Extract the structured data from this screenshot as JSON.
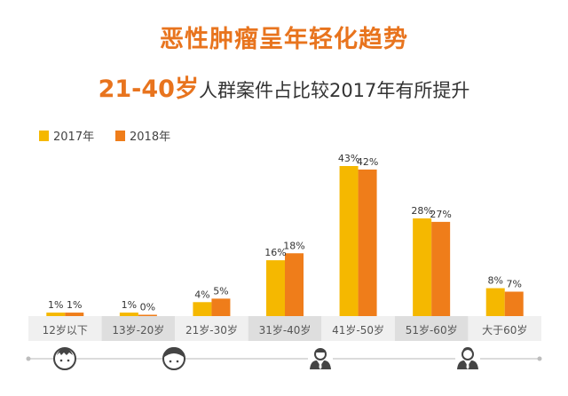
{
  "header": {
    "title": "恶性肿瘤呈年轻化趋势",
    "subtitle_highlight": "21-40岁",
    "subtitle_rest": "人群案件占比较2017年有所提升"
  },
  "chart_data": {
    "type": "bar",
    "title": "恶性肿瘤呈年轻化趋势",
    "categories": [
      "12岁以下",
      "13岁-20岁",
      "21岁-30岁",
      "31岁-40岁",
      "41岁-50岁",
      "51岁-60岁",
      "大于60岁"
    ],
    "series": [
      {
        "name": "2017年",
        "color": "#f5b800",
        "values": [
          1,
          1,
          4,
          16,
          43,
          28,
          8
        ],
        "labels": [
          "1%",
          "1%",
          "4%",
          "16%",
          "43%",
          "28%",
          "8%"
        ]
      },
      {
        "name": "2018年",
        "color": "#ef7d1a",
        "values": [
          1,
          0,
          5,
          18,
          42,
          27,
          7
        ],
        "labels": [
          "1%",
          "0%",
          "5%",
          "18%",
          "42%",
          "27%",
          "7%"
        ]
      }
    ],
    "ylim": [
      0,
      43
    ],
    "grid": false,
    "legend": "top-left",
    "category_band_colors": [
      "#f0f0f0",
      "#dedede"
    ],
    "category_icons": [
      "child-face-icon",
      "teen-face-icon",
      "adult-suit-icon",
      "senior-suit-icon"
    ]
  }
}
